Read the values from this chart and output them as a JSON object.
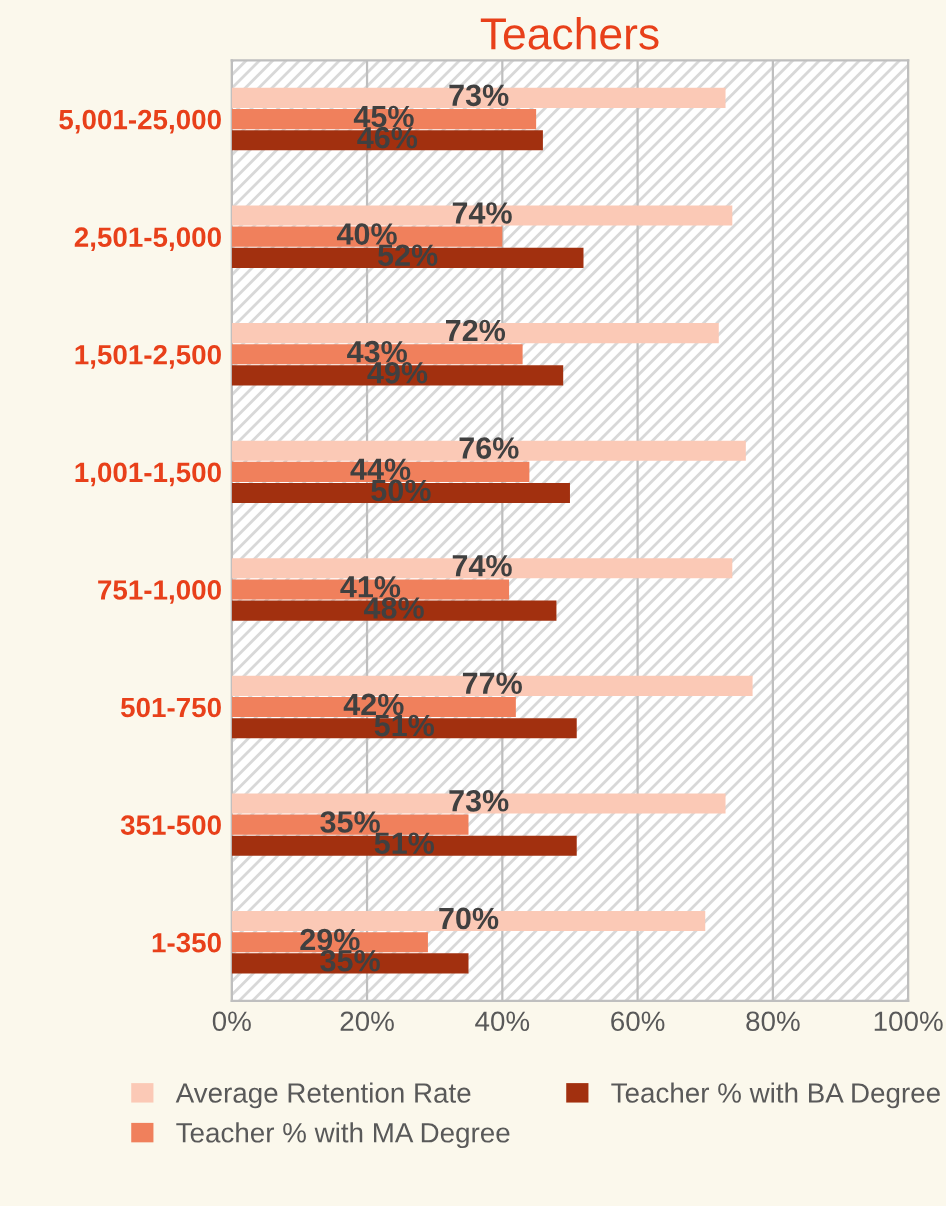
{
  "chart_data": {
    "type": "bar",
    "orientation": "horizontal",
    "title": "Teachers",
    "categories": [
      "5,001-25,000",
      "2,501-5,000",
      "1,501-2,500",
      "1,001-1,500",
      "751-1,000",
      "501-750",
      "351-500",
      "1-350"
    ],
    "series": [
      {
        "name": "Average Retention Rate",
        "color": "#fbc9b6",
        "values": [
          73,
          74,
          72,
          76,
          74,
          77,
          73,
          70
        ],
        "value_labels": [
          "73%",
          "74%",
          "72%",
          "76%",
          "74%",
          "77%",
          "73%",
          "70%"
        ]
      },
      {
        "name": "Teacher % with MA Degree",
        "color": "#f0805c",
        "values": [
          45,
          40,
          43,
          44,
          41,
          42,
          35,
          29
        ],
        "value_labels": [
          "45%",
          "40%",
          "43%",
          "44%",
          "41%",
          "42%",
          "35%",
          "29%"
        ]
      },
      {
        "name": "Teacher % with BA Degree",
        "color": "#a2300f",
        "values": [
          46,
          52,
          49,
          50,
          48,
          51,
          51,
          35
        ],
        "value_labels": [
          "46%",
          "52%",
          "49%",
          "50%",
          "48%",
          "51%",
          "51%",
          "35%"
        ]
      }
    ],
    "xlim": [
      0,
      100
    ],
    "xticks": [
      {
        "value": 0,
        "label": "0%"
      },
      {
        "value": 20,
        "label": "20%"
      },
      {
        "value": 40,
        "label": "40%"
      },
      {
        "value": 60,
        "label": "60%"
      },
      {
        "value": 80,
        "label": "80%"
      },
      {
        "value": 100,
        "label": "100%"
      }
    ],
    "grid": "x",
    "legend": "bottom"
  }
}
